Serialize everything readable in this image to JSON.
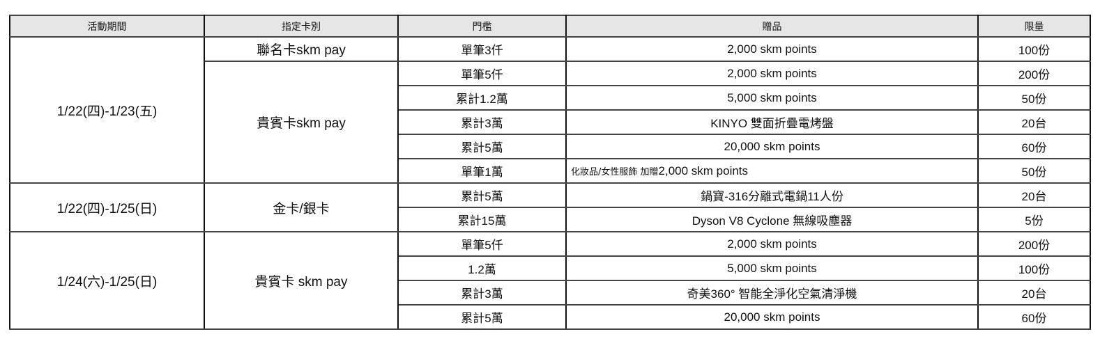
{
  "headers": [
    "活動期間",
    "指定卡別",
    "門檻",
    "贈品",
    "限量"
  ],
  "groups": [
    {
      "period": "1/22(四)-1/23(五)",
      "cards": [
        {
          "card": "聯名卡skm pay",
          "rows": [
            {
              "threshold": "單筆3仟",
              "gift": "2,000 skm points",
              "limit": "100份"
            }
          ]
        },
        {
          "card": "貴賓卡skm pay",
          "rows": [
            {
              "threshold": "單筆5仟",
              "gift": "2,000 skm points",
              "limit": "200份"
            },
            {
              "threshold": "累計1.2萬",
              "gift": "5,000 skm points",
              "limit": "50份"
            },
            {
              "threshold": "累計3萬",
              "gift": "KINYO 雙面折疊電烤盤",
              "limit": "20台"
            },
            {
              "threshold": "累計5萬",
              "gift": "20,000 skm points",
              "limit": "60份"
            },
            {
              "threshold": "單筆1萬",
              "gift_prefix": "化妝品/女性服飾 加贈",
              "gift": "2,000 skm points",
              "limit": "50份"
            }
          ]
        }
      ]
    },
    {
      "period": "1/22(四)-1/25(日)",
      "cards": [
        {
          "card": "金卡/銀卡",
          "rows": [
            {
              "threshold": "累計5萬",
              "gift": "鍋寶-316分離式電鍋11人份",
              "limit": "20台"
            },
            {
              "threshold": "累計15萬",
              "gift": "Dyson V8 Cyclone 無線吸塵器",
              "limit": "5份"
            }
          ]
        }
      ]
    },
    {
      "period": "1/24(六)-1/25(日)",
      "cards": [
        {
          "card": "貴賓卡 skm pay",
          "rows": [
            {
              "threshold": "單筆5仟",
              "gift": "2,000 skm points",
              "limit": "200份"
            },
            {
              "threshold": "1.2萬",
              "gift": "5,000 skm points",
              "limit": "100份"
            },
            {
              "threshold": "累計3萬",
              "gift": "奇美360° 智能全淨化空氣清淨機",
              "limit": "20台"
            },
            {
              "threshold": "累計5萬",
              "gift": "20,000 skm points",
              "limit": "60份"
            }
          ]
        }
      ]
    }
  ]
}
